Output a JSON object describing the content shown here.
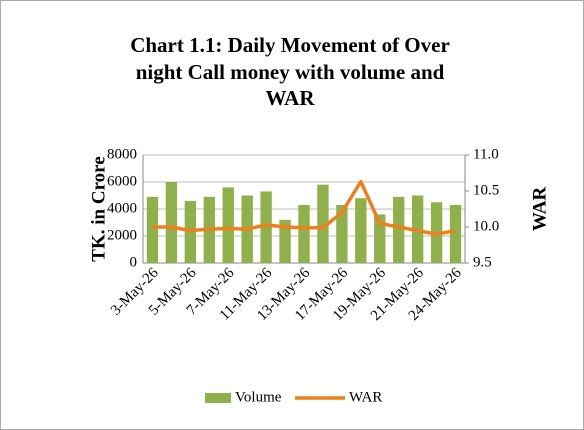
{
  "chart_data": {
    "type": "bar_line",
    "title": [
      "Chart 1.1: Daily Movement of Over",
      "night Call money with volume and",
      "WAR"
    ],
    "y_label": "TK. in Crore",
    "y2_label": "WAR",
    "categories": [
      "3-May-26",
      null,
      "5-May-26",
      null,
      "7-May-26",
      null,
      "11-May-26",
      null,
      "13-May-26",
      null,
      "17-May-26",
      null,
      "19-May-26",
      null,
      "21-May-26",
      null,
      "24-May-26"
    ],
    "series": [
      {
        "name": "Volume",
        "type": "bar",
        "color": "#8fb04a",
        "values": [
          4900,
          6000,
          4600,
          4900,
          5600,
          5000,
          5300,
          3200,
          4300,
          5800,
          4300,
          4800,
          3600,
          4900,
          5000,
          4500,
          4300
        ]
      },
      {
        "name": "WAR",
        "type": "line",
        "axis": "y2",
        "color": "#f07f1e",
        "values": [
          10.0,
          10.0,
          9.95,
          9.97,
          9.98,
          9.97,
          10.03,
          10.0,
          9.99,
          9.99,
          10.2,
          10.63,
          10.05,
          10.0,
          9.95,
          9.9,
          9.95
        ]
      }
    ],
    "ylim": [
      0,
      8000
    ],
    "yticks": [
      0,
      2000,
      4000,
      6000,
      8000
    ],
    "y2lim": [
      9.5,
      11
    ],
    "y2ticks": [
      {
        "value": 9.5,
        "label": "9.5"
      },
      {
        "value": 10,
        "label": "10.0"
      },
      {
        "value": 10.5,
        "label": "10.5"
      },
      {
        "value": 11,
        "label": "11.0"
      }
    ],
    "grid": true,
    "legend": "bottom"
  }
}
